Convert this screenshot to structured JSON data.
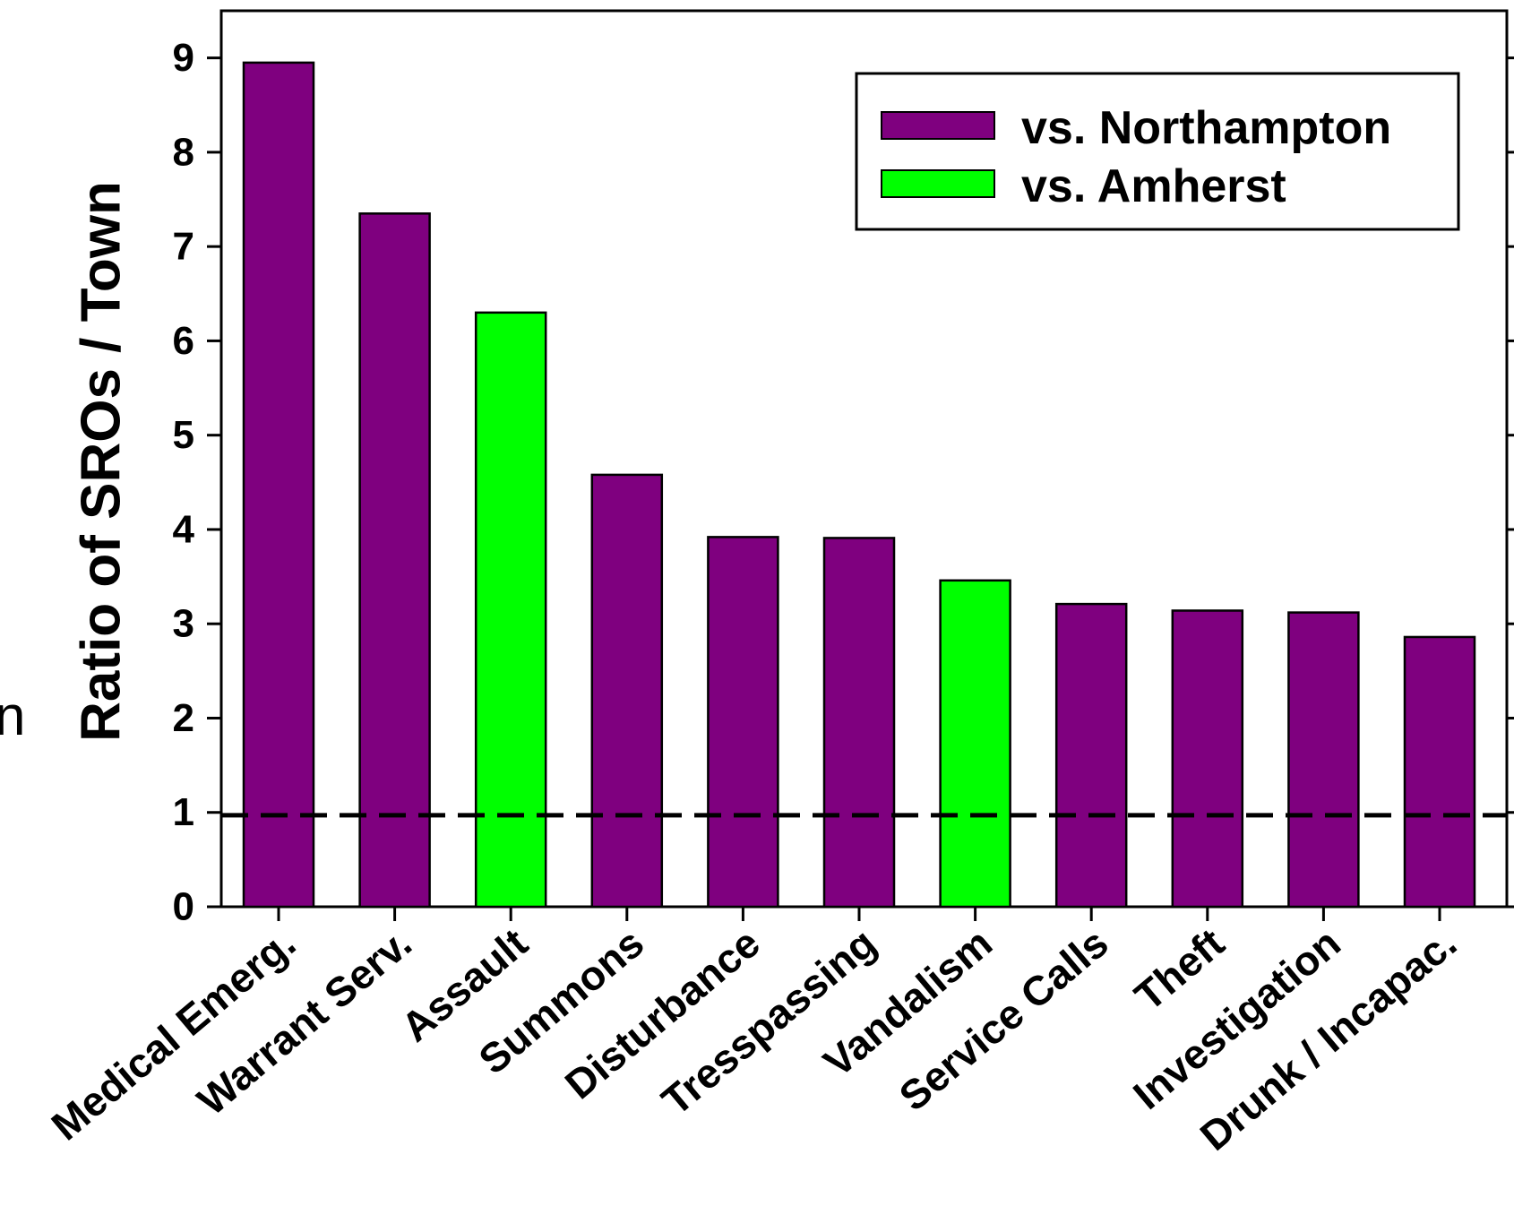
{
  "colors": {
    "northampton": "#7f007f",
    "amherst": "#00ff00",
    "axis": "#000000"
  },
  "edge_fragment": "n",
  "chart_data": {
    "type": "bar",
    "ylabel": "Ratio of SROs / Town",
    "xlabel": "",
    "ylim": [
      0,
      9.5
    ],
    "yticks": [
      0,
      1,
      2,
      3,
      4,
      5,
      6,
      7,
      8,
      9
    ],
    "reference_line": {
      "y": 0.97,
      "style": "dashed"
    },
    "legend": {
      "placement": "top-right",
      "entries": [
        {
          "name": "vs. Northampton",
          "color": "#7f007f"
        },
        {
          "name": "vs. Amherst",
          "color": "#00ff00"
        }
      ]
    },
    "categories": [
      "Medical Emerg.",
      "Warrant Serv.",
      "Assault",
      "Summons",
      "Disturbance",
      "Tresspassing",
      "Vandalism",
      "Service Calls",
      "Theft",
      "Investigation",
      "Drunk / Incapac."
    ],
    "values": [
      8.95,
      7.35,
      6.3,
      4.58,
      3.92,
      3.91,
      3.46,
      3.21,
      3.14,
      3.12,
      2.86
    ],
    "series_index": [
      0,
      0,
      1,
      0,
      0,
      0,
      1,
      0,
      0,
      0,
      0
    ]
  }
}
